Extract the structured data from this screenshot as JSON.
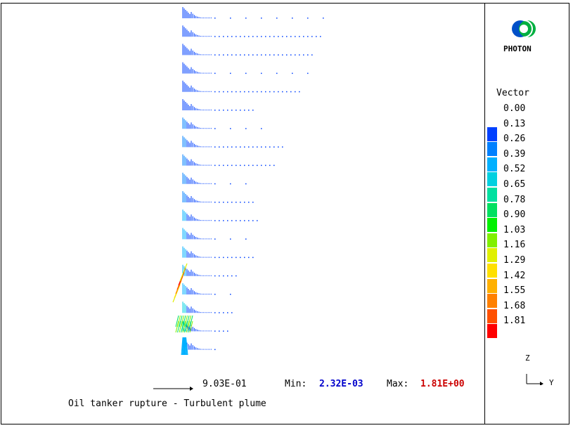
{
  "logo": {
    "text": "PHOTON",
    "icon": "photon-logo-icon"
  },
  "legend": {
    "title": "Vector",
    "levels": [
      "0.00",
      "0.13",
      "0.26",
      "0.39",
      "0.52",
      "0.65",
      "0.78",
      "0.90",
      "1.03",
      "1.16",
      "1.29",
      "1.42",
      "1.55",
      "1.68",
      "1.81"
    ],
    "colors": [
      "#0000ff",
      "#0040ff",
      "#0080ff",
      "#00b0ff",
      "#00d0e0",
      "#00e0a0",
      "#00e060",
      "#00f000",
      "#80f000",
      "#e0f000",
      "#ffe000",
      "#ffb000",
      "#ff8000",
      "#ff5000",
      "#ff0000"
    ]
  },
  "reference": {
    "value": "9.03E-01"
  },
  "min": {
    "label": "Min:",
    "value": "2.32E-03"
  },
  "max": {
    "label": "Max:",
    "value": "1.81E+00"
  },
  "caption": "Oil tanker rupture - Turbulent plume",
  "axes": {
    "z": "Z",
    "y": "Y"
  }
}
